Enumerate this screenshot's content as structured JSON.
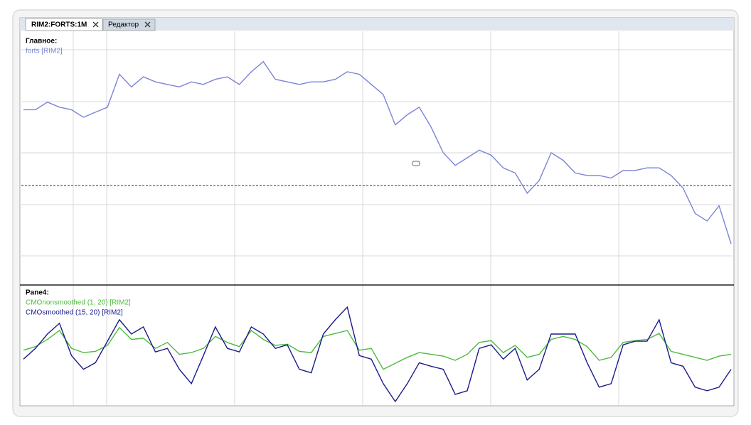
{
  "tabs": [
    "RIM2:FORTS:1M",
    "Редактор"
  ],
  "chart_data": [
    {
      "type": "line",
      "title": "Главное:",
      "ylim": [
        0,
        100
      ],
      "level": 39,
      "series": [
        {
          "name": "forts [RIM2]",
          "color": "#7b83d6",
          "values": [
            69,
            69,
            72,
            70,
            69,
            66,
            68,
            70,
            83,
            78,
            82,
            80,
            79,
            78,
            80,
            79,
            81,
            82,
            79,
            84,
            88,
            81,
            80,
            79,
            80,
            80,
            81,
            84,
            83,
            79,
            75,
            63,
            67,
            70,
            62,
            52,
            47,
            50,
            53,
            51,
            46,
            44,
            36,
            41,
            52,
            49,
            44,
            43,
            43,
            42,
            45,
            45,
            46,
            46,
            43,
            38,
            28,
            25,
            31,
            16
          ]
        }
      ]
    },
    {
      "type": "line",
      "title": "Pane4:",
      "ylim": [
        -100,
        100
      ],
      "series": [
        {
          "name": "CMOnonsmoothed (1, 20) [RIM2]",
          "color": "#4cbb3c",
          "values": [
            -8,
            -2,
            10,
            25,
            -5,
            -12,
            -10,
            0,
            30,
            10,
            12,
            -5,
            5,
            -15,
            -12,
            -5,
            15,
            5,
            -2,
            25,
            10,
            0,
            2,
            -10,
            -12,
            15,
            20,
            25,
            -8,
            -5,
            -40,
            -30,
            -20,
            -12,
            -15,
            -18,
            -25,
            -15,
            5,
            8,
            -12,
            0,
            -20,
            -15,
            10,
            15,
            10,
            -2,
            -25,
            -20,
            5,
            8,
            10,
            20,
            -10,
            -15,
            -20,
            -25,
            -18,
            -15
          ]
        },
        {
          "name": "CMOsmoothed (15, 20) [RIM2]",
          "color": "#1a1a8c",
          "values": [
            -23,
            -5,
            19,
            37,
            -17,
            -40,
            -29,
            7,
            43,
            19,
            31,
            -11,
            -5,
            -40,
            -64,
            -17,
            31,
            -5,
            -11,
            31,
            19,
            -5,
            1,
            -40,
            -46,
            19,
            43,
            64,
            -17,
            -23,
            -64,
            -94,
            -64,
            -29,
            -35,
            -40,
            -82,
            -76,
            -5,
            1,
            -23,
            -5,
            -58,
            -40,
            19,
            19,
            19,
            -29,
            -70,
            -64,
            1,
            7,
            7,
            43,
            -29,
            -35,
            -70,
            -76,
            -70,
            -40
          ]
        }
      ]
    }
  ]
}
